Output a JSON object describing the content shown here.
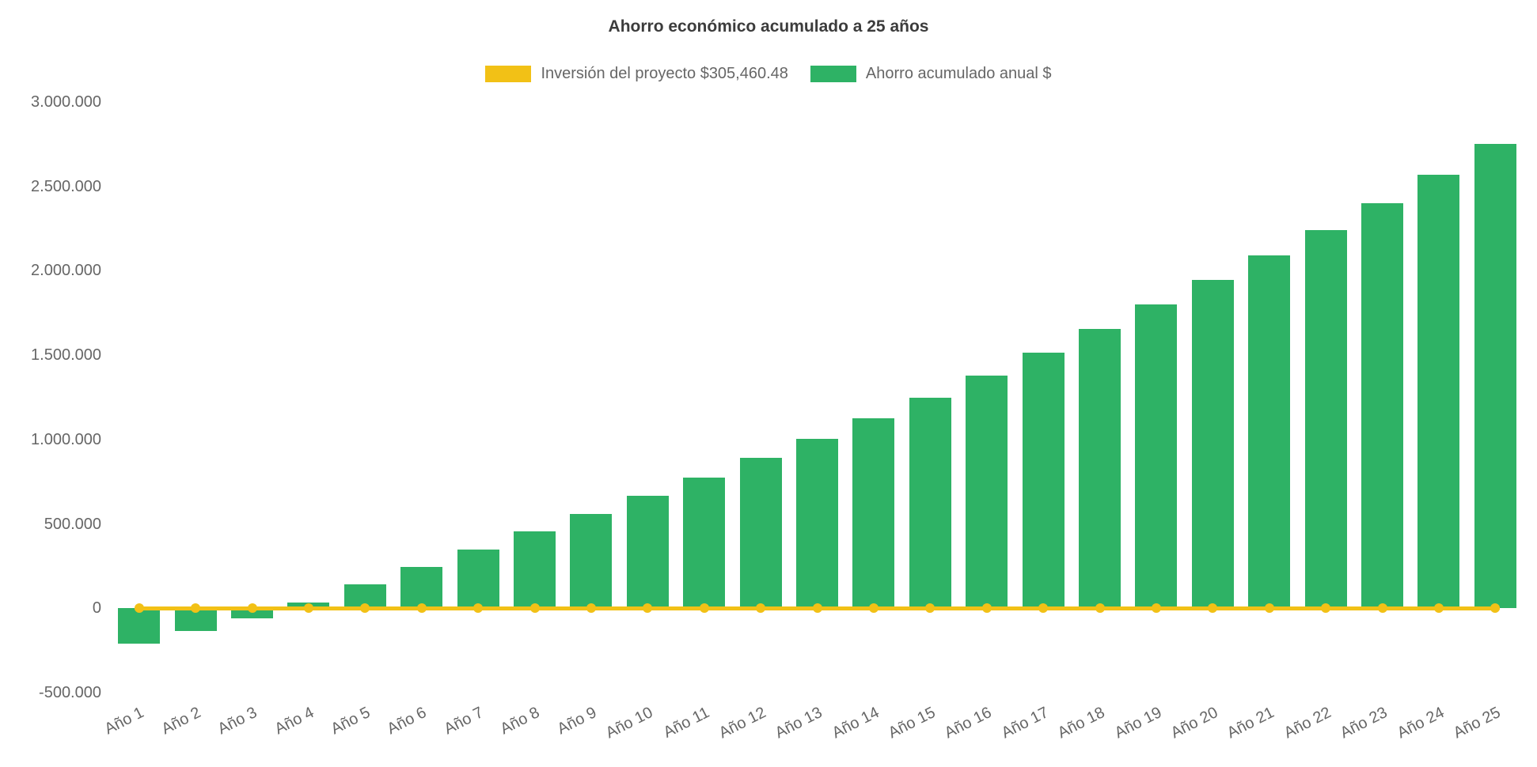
{
  "page": {
    "background_color": "#ffffff",
    "text_color": "#666666",
    "title_color": "#3c3c3c"
  },
  "chart_data": {
    "type": "bar",
    "title": "Ahorro económico acumulado a 25 años",
    "categories": [
      "Año 1",
      "Año 2",
      "Año 3",
      "Año 4",
      "Año 5",
      "Año 6",
      "Año 7",
      "Año 8",
      "Año 9",
      "Año 10",
      "Año 11",
      "Año 12",
      "Año 13",
      "Año 14",
      "Año 15",
      "Año 16",
      "Año 17",
      "Año 18",
      "Año 19",
      "Año 20",
      "Año 21",
      "Año 22",
      "Año 23",
      "Año 24",
      "Año 25"
    ],
    "series": [
      {
        "name": "Inversión del proyecto $305,460.48",
        "type": "line",
        "color": "#F2C116",
        "values": [
          0,
          0,
          0,
          0,
          0,
          0,
          0,
          0,
          0,
          0,
          0,
          0,
          0,
          0,
          0,
          0,
          0,
          0,
          0,
          0,
          0,
          0,
          0,
          0,
          0
        ]
      },
      {
        "name": "Ahorro acumulado anual $",
        "type": "bar",
        "color": "#2EB265",
        "values": [
          -210000,
          -135000,
          -60000,
          35000,
          140000,
          245000,
          350000,
          455000,
          560000,
          665000,
          775000,
          890000,
          1005000,
          1125000,
          1250000,
          1380000,
          1515000,
          1655000,
          1800000,
          1945000,
          2090000,
          2240000,
          2400000,
          2570000,
          2750000
        ]
      }
    ],
    "ylim": [
      -500000,
      3000000
    ],
    "y_ticks": [
      "3.000.000",
      "2.500.000",
      "2.000.000",
      "1.500.000",
      "1.000.000",
      "500.000",
      "0",
      "-500.000"
    ],
    "grid": false,
    "legend_position": "top",
    "x_label_rotation_deg": -27
  }
}
